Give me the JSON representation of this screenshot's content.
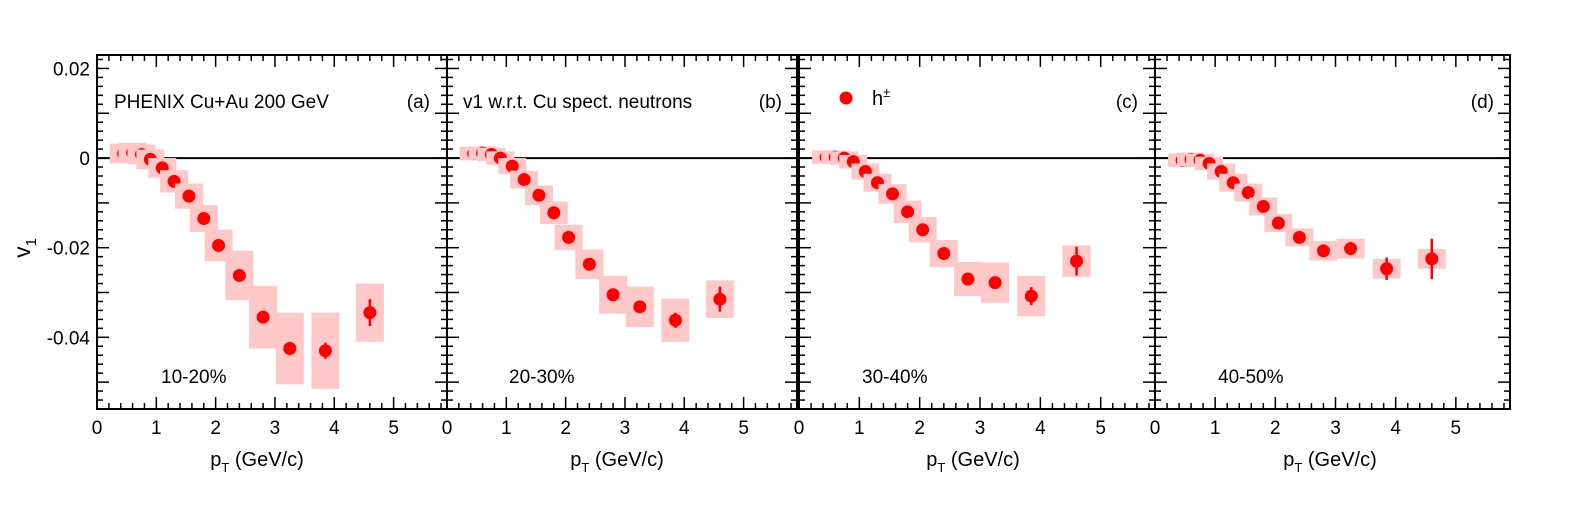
{
  "y_axis_label": "v",
  "y_axis_label_sub": "1",
  "x_axis_label": "p",
  "x_axis_label_sub": "T",
  "x_axis_label_unit": " (GeV/c)",
  "texts": {
    "experiment": "PHENIX Cu+Au 200 GeV",
    "reference": "v1 w.r.t. Cu spect. neutrons",
    "legend_label": "h",
    "legend_sup": "±"
  },
  "colors": {
    "marker": "#ff0000",
    "sys_box": "#ffc8c8",
    "axis": "#000000"
  },
  "chart_data": [
    {
      "type": "scatter",
      "panel_label": "(a)",
      "centrality": "10-20%",
      "xlim": [
        0,
        5.9
      ],
      "ylim": [
        -0.056,
        0.023
      ],
      "x_ticks": [
        0,
        1,
        2,
        3,
        4,
        5
      ],
      "y_ticks": [
        0.02,
        0,
        -0.02,
        -0.04
      ],
      "y_tick_labels": [
        "0.02",
        "0",
        "-0.02",
        "-0.04"
      ],
      "reference_line": 0,
      "series": [
        {
          "x": [
            0.45,
            0.6,
            0.75,
            0.9,
            1.1,
            1.3,
            1.55,
            1.8,
            2.05,
            2.4,
            2.8,
            3.25,
            3.85,
            4.6
          ],
          "y": [
            0.001,
            0.0012,
            0.0008,
            -0.0003,
            -0.0022,
            -0.0052,
            -0.0085,
            -0.0135,
            -0.0195,
            -0.0262,
            -0.0355,
            -0.0425,
            -0.043,
            -0.0345
          ],
          "stat_err": [
            0.0005,
            0.0005,
            0.0005,
            0.0005,
            0.0005,
            0.0005,
            0.0006,
            0.0007,
            0.0009,
            0.001,
            0.0013,
            0.0015,
            0.0018,
            0.003
          ],
          "sys_err": [
            0.0022,
            0.0022,
            0.0022,
            0.0022,
            0.0022,
            0.0025,
            0.0028,
            0.003,
            0.0035,
            0.0055,
            0.007,
            0.008,
            0.0085,
            0.0065
          ]
        }
      ]
    },
    {
      "type": "scatter",
      "panel_label": "(b)",
      "centrality": "20-30%",
      "xlim": [
        0,
        5.9
      ],
      "ylim": [
        -0.056,
        0.023
      ],
      "x_ticks": [
        0,
        1,
        2,
        3,
        4,
        5
      ],
      "reference_line": 0,
      "series": [
        {
          "x": [
            0.45,
            0.6,
            0.75,
            0.9,
            1.1,
            1.3,
            1.55,
            1.8,
            2.05,
            2.4,
            2.8,
            3.25,
            3.85,
            4.6
          ],
          "y": [
            0.001,
            0.0011,
            0.0008,
            0.0,
            -0.0018,
            -0.0048,
            -0.0083,
            -0.0122,
            -0.0177,
            -0.0237,
            -0.0305,
            -0.0332,
            -0.0362,
            -0.0315
          ],
          "stat_err": [
            0.0004,
            0.0004,
            0.0004,
            0.0004,
            0.0004,
            0.0004,
            0.0005,
            0.0006,
            0.0007,
            0.0009,
            0.0011,
            0.0013,
            0.0017,
            0.0028
          ],
          "sys_err": [
            0.0015,
            0.0015,
            0.0015,
            0.0015,
            0.0018,
            0.002,
            0.0022,
            0.0025,
            0.0028,
            0.0033,
            0.0042,
            0.0045,
            0.0048,
            0.0042
          ]
        }
      ]
    },
    {
      "type": "scatter",
      "panel_label": "(c)",
      "centrality": "30-40%",
      "xlim": [
        0,
        5.9
      ],
      "ylim": [
        -0.056,
        0.023
      ],
      "x_ticks": [
        0,
        1,
        2,
        3,
        4,
        5
      ],
      "reference_line": 0,
      "series": [
        {
          "name": "h±",
          "x": [
            0.45,
            0.6,
            0.75,
            0.9,
            1.1,
            1.3,
            1.55,
            1.8,
            2.05,
            2.4,
            2.8,
            3.25,
            3.85,
            4.6
          ],
          "y": [
            0.0002,
            0.0002,
            0.0,
            -0.0008,
            -0.003,
            -0.0055,
            -0.008,
            -0.012,
            -0.016,
            -0.0213,
            -0.027,
            -0.0278,
            -0.0308,
            -0.023
          ],
          "stat_err": [
            0.0004,
            0.0004,
            0.0004,
            0.0004,
            0.0004,
            0.0004,
            0.0005,
            0.0006,
            0.0007,
            0.0009,
            0.0012,
            0.0014,
            0.002,
            0.0032
          ],
          "sys_err": [
            0.0015,
            0.0015,
            0.0015,
            0.0015,
            0.0018,
            0.002,
            0.0022,
            0.0025,
            0.0028,
            0.003,
            0.0038,
            0.0045,
            0.0045,
            0.0035
          ]
        }
      ]
    },
    {
      "type": "scatter",
      "panel_label": "(d)",
      "centrality": "40-50%",
      "xlim": [
        0,
        5.9
      ],
      "ylim": [
        -0.056,
        0.023
      ],
      "x_ticks": [
        0,
        1,
        2,
        3,
        4,
        5
      ],
      "reference_line": 0,
      "series": [
        {
          "x": [
            0.45,
            0.6,
            0.75,
            0.9,
            1.1,
            1.3,
            1.55,
            1.8,
            2.05,
            2.4,
            2.8,
            3.25,
            3.85,
            4.6
          ],
          "y": [
            -0.0005,
            -0.0003,
            -0.0005,
            -0.0012,
            -0.003,
            -0.0055,
            -0.0077,
            -0.0108,
            -0.0145,
            -0.0177,
            -0.0207,
            -0.0202,
            -0.0247,
            -0.0225
          ],
          "stat_err": [
            0.0004,
            0.0004,
            0.0004,
            0.0004,
            0.0004,
            0.0004,
            0.0005,
            0.0006,
            0.0007,
            0.0009,
            0.0011,
            0.0015,
            0.0025,
            0.0045
          ],
          "sys_err": [
            0.0015,
            0.0015,
            0.0015,
            0.0015,
            0.0018,
            0.002,
            0.002,
            0.002,
            0.002,
            0.002,
            0.0022,
            0.0022,
            0.0022,
            0.0022
          ]
        }
      ]
    }
  ]
}
